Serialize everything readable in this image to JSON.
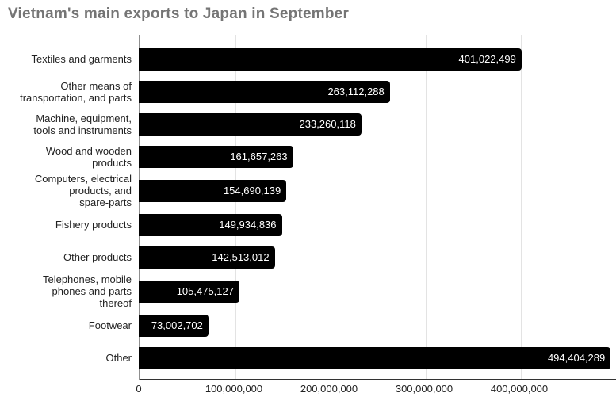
{
  "title": "Vietnam's main exports to Japan in September",
  "colors": {
    "background": "#ffffff",
    "bar": "#000000",
    "title_text": "#757575",
    "category_label": "#222222",
    "value_label": "#ffffff",
    "gridline": "#e3e3e3",
    "baseline": "#8f8f8f",
    "axis_line": "#333333"
  },
  "chart_data": {
    "type": "bar",
    "orientation": "horizontal",
    "title": "Vietnam's main exports to Japan in September",
    "xlabel": "",
    "ylabel": "",
    "xlim": [
      0,
      500000000
    ],
    "grid": true,
    "legend": "none",
    "categories": [
      "Textiles and garments",
      "Other means of transportation, and parts",
      "Machine, equipment, tools and instruments",
      "Wood and wooden products",
      "Computers, electrical products, and spare-parts",
      "Fishery products",
      "Other products",
      "Telephones, mobile phones and parts thereof",
      "Footwear",
      "Other"
    ],
    "category_display": [
      "Textiles and garments",
      "Other means of\ntransportation, and parts",
      "Machine, equipment,\ntools and instruments",
      "Wood and wooden\nproducts",
      "Computers, electrical\nproducts, and\nspare-parts",
      "Fishery products",
      "Other products",
      "Telephones, mobile\nphones and parts\nthereof",
      "Footwear",
      "Other"
    ],
    "values": [
      401022499,
      263112288,
      233260118,
      161657263,
      154690139,
      149934836,
      142513012,
      105475127,
      73002702,
      494404289
    ],
    "value_labels": [
      "401,022,499",
      "263,112,288",
      "233,260,118",
      "161,657,263",
      "154,690,139",
      "149,934,836",
      "142,513,012",
      "105,475,127",
      "73,002,702",
      "494,404,289"
    ],
    "x_ticks": [
      {
        "value": 0,
        "label": "0"
      },
      {
        "value": 100000000,
        "label": "100,000,000"
      },
      {
        "value": 200000000,
        "label": "200,000,000"
      },
      {
        "value": 300000000,
        "label": "300,000,000"
      },
      {
        "value": 400000000,
        "label": "400,000,000"
      }
    ]
  }
}
